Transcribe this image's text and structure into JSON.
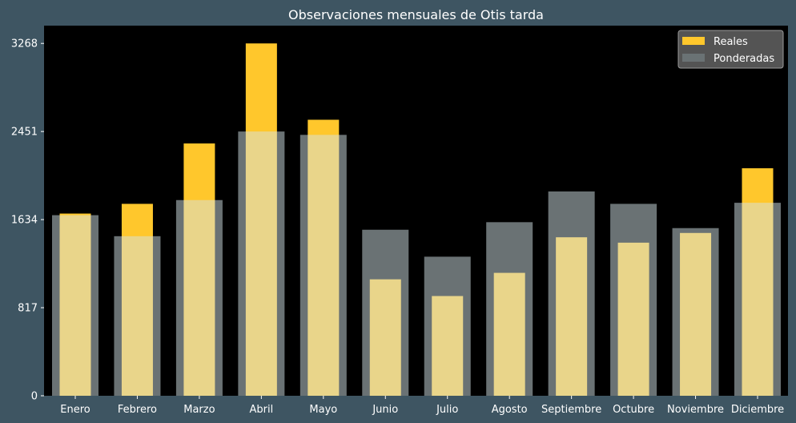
{
  "colors": {
    "figure_background": "#3e5562",
    "plot_background": "#000000",
    "reales": "#ffc72c",
    "ponderadas": "#d3e3e7",
    "ponderadas_opacity": 0.5,
    "text": "#ffffff"
  },
  "chart_data": {
    "type": "bar",
    "title": "Observaciones mensuales de Otis tarda",
    "xlabel": "",
    "ylabel": "",
    "categories": [
      "Enero",
      "Febrero",
      "Marzo",
      "Abril",
      "Mayo",
      "Junio",
      "Julio",
      "Agosto",
      "Septiembre",
      "Octubre",
      "Noviembre",
      "Diciembre"
    ],
    "series": [
      {
        "name": "Reales",
        "values": [
          1690,
          1780,
          2340,
          3268,
          2560,
          1080,
          925,
          1140,
          1470,
          1420,
          1510,
          2110
        ]
      },
      {
        "name": "Ponderadas",
        "values": [
          1675,
          1480,
          1815,
          2451,
          2420,
          1540,
          1290,
          1610,
          1895,
          1780,
          1555,
          1790
        ]
      }
    ],
    "yticks": [
      0,
      817,
      1634,
      2451,
      3268
    ],
    "ylim": [
      0,
      3433
    ],
    "legend_position": "top-right",
    "grid": false
  }
}
